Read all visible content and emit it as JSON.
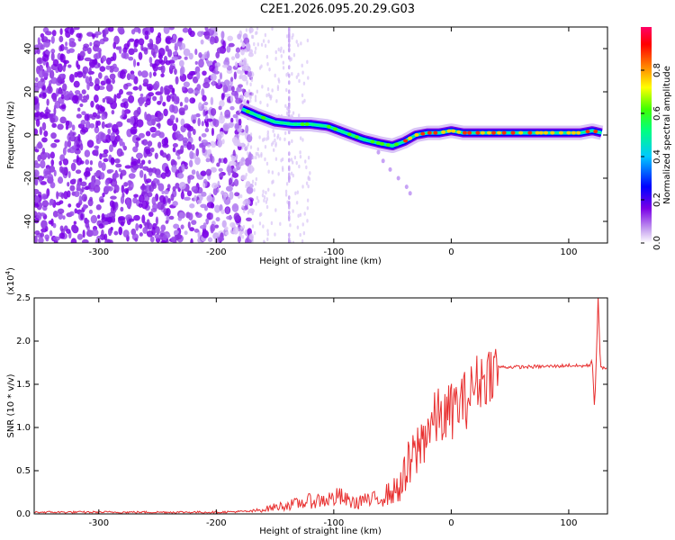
{
  "title": "C2E1.2026.095.20.29.G03",
  "chart_data": [
    {
      "type": "heatmap",
      "name": "spectrogram",
      "xlabel": "Height of straight line (km)",
      "ylabel": "Frequency (Hz)",
      "xlim": [
        -355,
        133
      ],
      "ylim": [
        -50,
        50
      ],
      "xticks": [
        -300,
        -200,
        -100,
        0,
        100
      ],
      "yticks": [
        -40,
        -20,
        0,
        20,
        40
      ],
      "colorbar": {
        "label": "Normalized spectral amplitude",
        "range": [
          0.0,
          1.0
        ],
        "ticks": [
          0.0,
          0.2,
          0.4,
          0.6,
          0.8
        ],
        "tick_labels": [
          "0.0",
          "0.2",
          "0.4",
          "0.6",
          "0.8"
        ]
      },
      "dominant_frequency_track": {
        "x": [
          -178,
          -165,
          -150,
          -135,
          -120,
          -105,
          -90,
          -75,
          -60,
          -50,
          -40,
          -30,
          -20,
          -10,
          0,
          10,
          30,
          60,
          90,
          110,
          120,
          128
        ],
        "y": [
          12,
          9,
          6,
          5,
          5,
          4,
          1,
          -2,
          -4,
          -5,
          -3,
          0,
          1,
          1,
          2,
          1,
          1,
          1,
          1,
          1,
          2,
          1
        ]
      }
    },
    {
      "type": "line",
      "name": "snr",
      "xlabel": "Height of straight line (km)",
      "ylabel": "SNR (10 * v/v)",
      "scale_label": "(x10",
      "scale_exp": "4",
      "scale_close": ")",
      "xlim": [
        -355,
        133
      ],
      "ylim": [
        0.0,
        2.5
      ],
      "xticks": [
        -300,
        -200,
        -100,
        0,
        100
      ],
      "yticks": [
        0.0,
        0.5,
        1.0,
        1.5,
        2.0,
        2.5
      ],
      "ytick_labels": [
        "0.0",
        "0.5",
        "1.0",
        "1.5",
        "2.0",
        "2.5"
      ],
      "color": "#e83030",
      "series": [
        {
          "name": "SNR",
          "x": [
            -355,
            -200,
            -170,
            -160,
            -150,
            -140,
            -130,
            -120,
            -110,
            -100,
            -95,
            -90,
            -80,
            -75,
            -70,
            -60,
            -50,
            -45,
            -40,
            -35,
            -30,
            -25,
            -20,
            -15,
            -10,
            -5,
            0,
            5,
            10,
            15,
            20,
            25,
            30,
            35,
            40,
            60,
            90,
            100,
            110,
            118,
            120,
            122,
            124,
            125,
            127,
            130,
            133
          ],
          "y": [
            0.02,
            0.02,
            0.03,
            0.05,
            0.08,
            0.1,
            0.12,
            0.15,
            0.16,
            0.18,
            0.2,
            0.16,
            0.12,
            0.18,
            0.14,
            0.2,
            0.25,
            0.3,
            0.4,
            0.55,
            0.7,
            0.85,
            1.0,
            1.05,
            1.15,
            1.1,
            1.2,
            1.25,
            1.3,
            1.35,
            1.5,
            1.55,
            1.6,
            1.68,
            1.7,
            1.7,
            1.71,
            1.72,
            1.71,
            1.72,
            1.8,
            1.2,
            2.0,
            2.5,
            1.72,
            1.68,
            1.7
          ]
        }
      ]
    }
  ]
}
